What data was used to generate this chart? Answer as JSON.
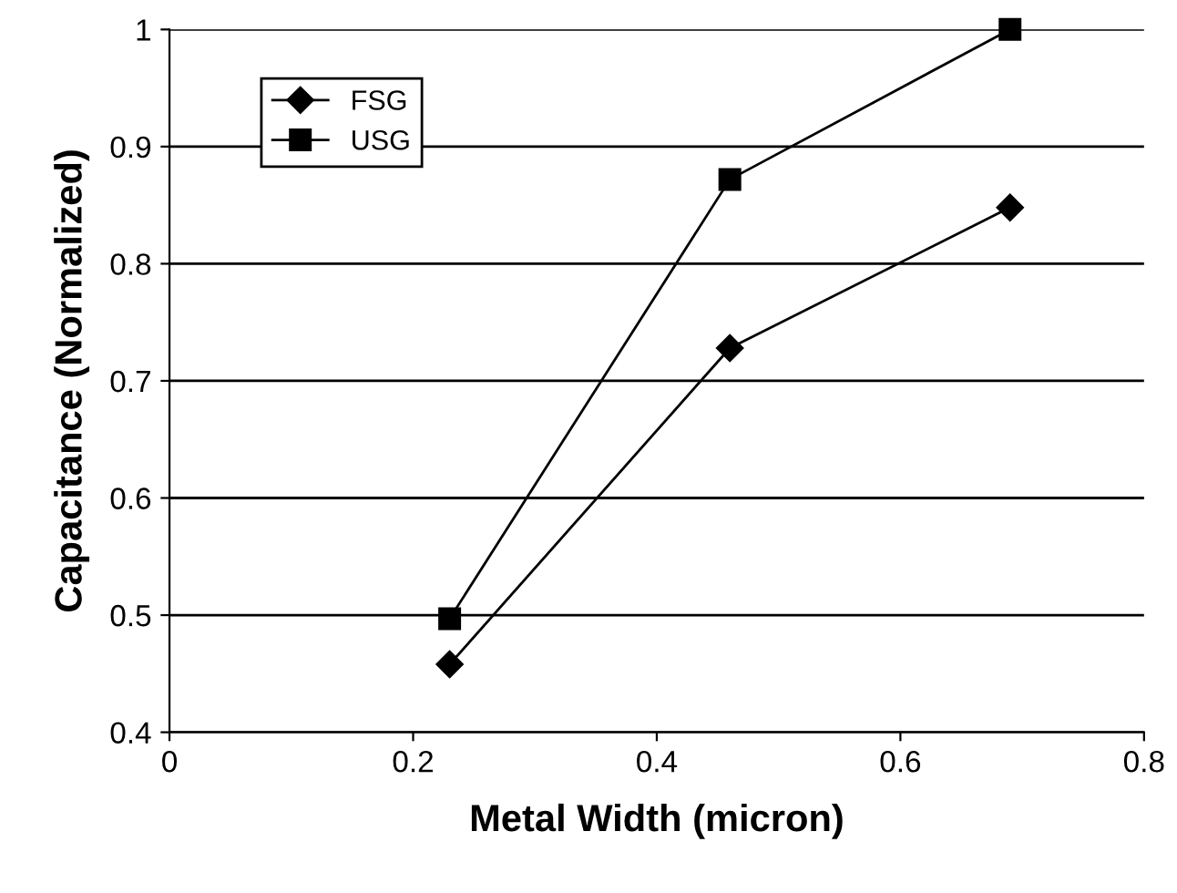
{
  "chart_data": {
    "type": "line",
    "xlabel": "Metal Width (micron)",
    "ylabel": "Capacitance (Normalized)",
    "x": [
      0.23,
      0.46,
      0.69
    ],
    "series": [
      {
        "name": "FSG",
        "color": "#000000",
        "marker": "diamond",
        "values": [
          0.458,
          0.728,
          0.848
        ]
      },
      {
        "name": "USG",
        "color": "#000000",
        "marker": "square",
        "values": [
          0.497,
          0.872,
          1.0
        ]
      }
    ],
    "xlim": [
      0,
      0.8
    ],
    "xticks": [
      0,
      0.2,
      0.4,
      0.6,
      0.8
    ],
    "ylim": [
      0.4,
      1
    ],
    "yticks": [
      0.4,
      0.5,
      0.6,
      0.7,
      0.8,
      0.9,
      1
    ],
    "grid": "y",
    "legend": "top left",
    "line_style": "solid"
  }
}
